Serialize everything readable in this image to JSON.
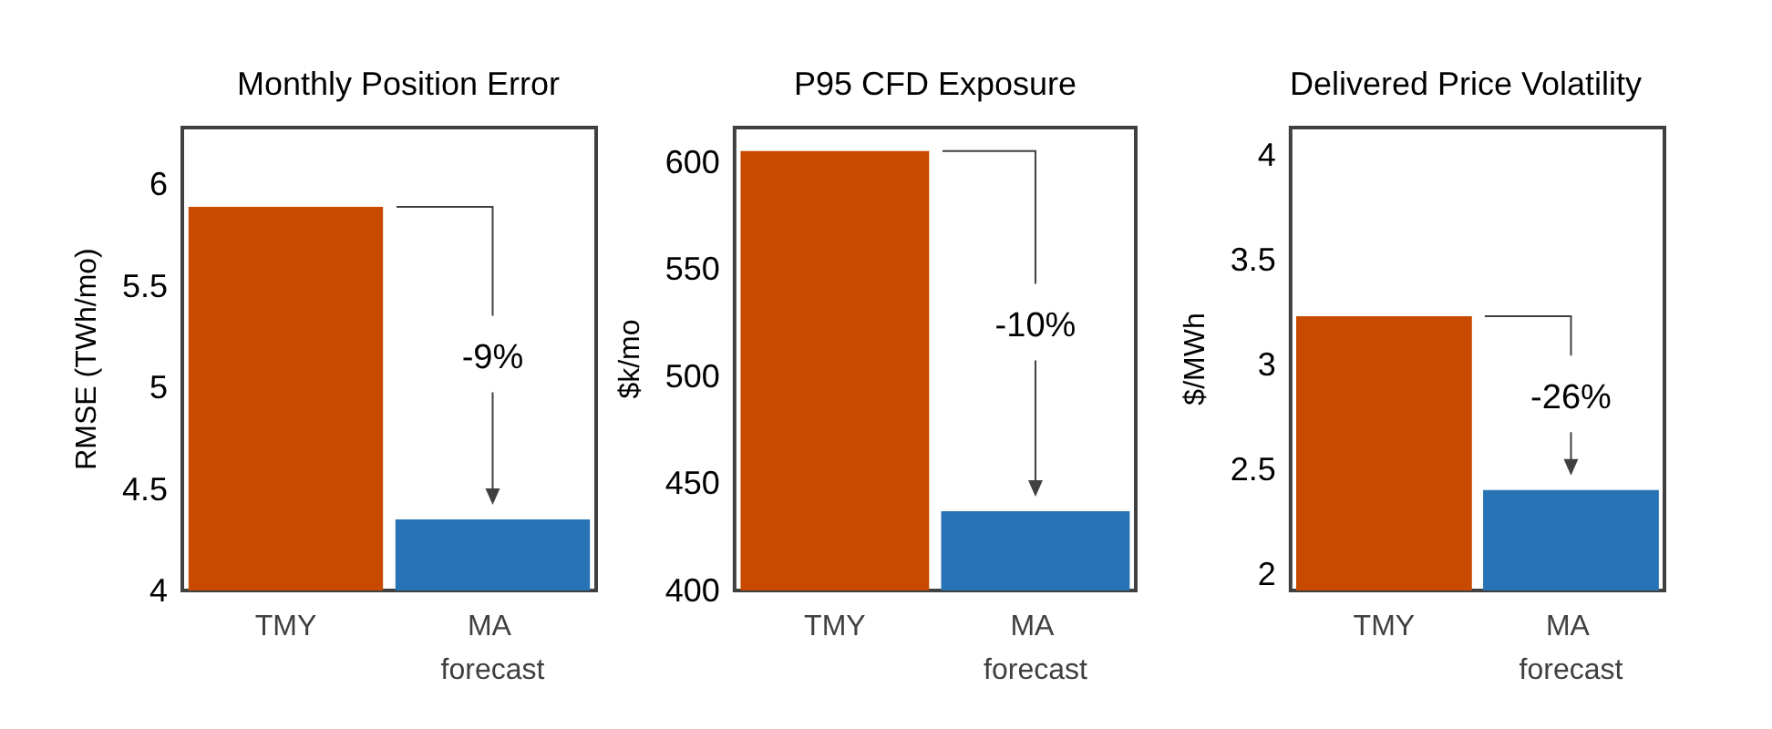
{
  "chart_data": [
    {
      "type": "bar",
      "title": "Monthly Position Error",
      "ylabel": "RMSE (TWh/mo)",
      "categories": [
        "TMY",
        "MA forecast"
      ],
      "values": [
        5.89,
        4.35
      ],
      "colors": [
        "#c84a00",
        "#2873b6"
      ],
      "ylim": [
        4,
        6.28
      ],
      "yticks": [
        4,
        4.5,
        5,
        5.5,
        6
      ],
      "grid": false,
      "annotations": [
        "-9%"
      ]
    },
    {
      "type": "bar",
      "title": "P95 CFD Exposure",
      "ylabel": "$k/mo",
      "categories": [
        "TMY",
        "MA forecast"
      ],
      "values": [
        605,
        437
      ],
      "colors": [
        "#c84a00",
        "#2873b6"
      ],
      "ylim": [
        400,
        616
      ],
      "yticks": [
        400,
        450,
        500,
        550,
        600
      ],
      "grid": false,
      "annotations": [
        "-10%"
      ]
    },
    {
      "type": "bar",
      "title": "Delivered Price Volatility",
      "ylabel": "$/MWh",
      "categories": [
        "TMY",
        "MA forecast"
      ],
      "values": [
        3.23,
        2.4
      ],
      "colors": [
        "#c84a00",
        "#2873b6"
      ],
      "ylim": [
        1.92,
        4.13
      ],
      "yticks": [
        2,
        2.5,
        3,
        3.5,
        4
      ],
      "grid": false,
      "annotations": [
        "-26%"
      ]
    }
  ]
}
